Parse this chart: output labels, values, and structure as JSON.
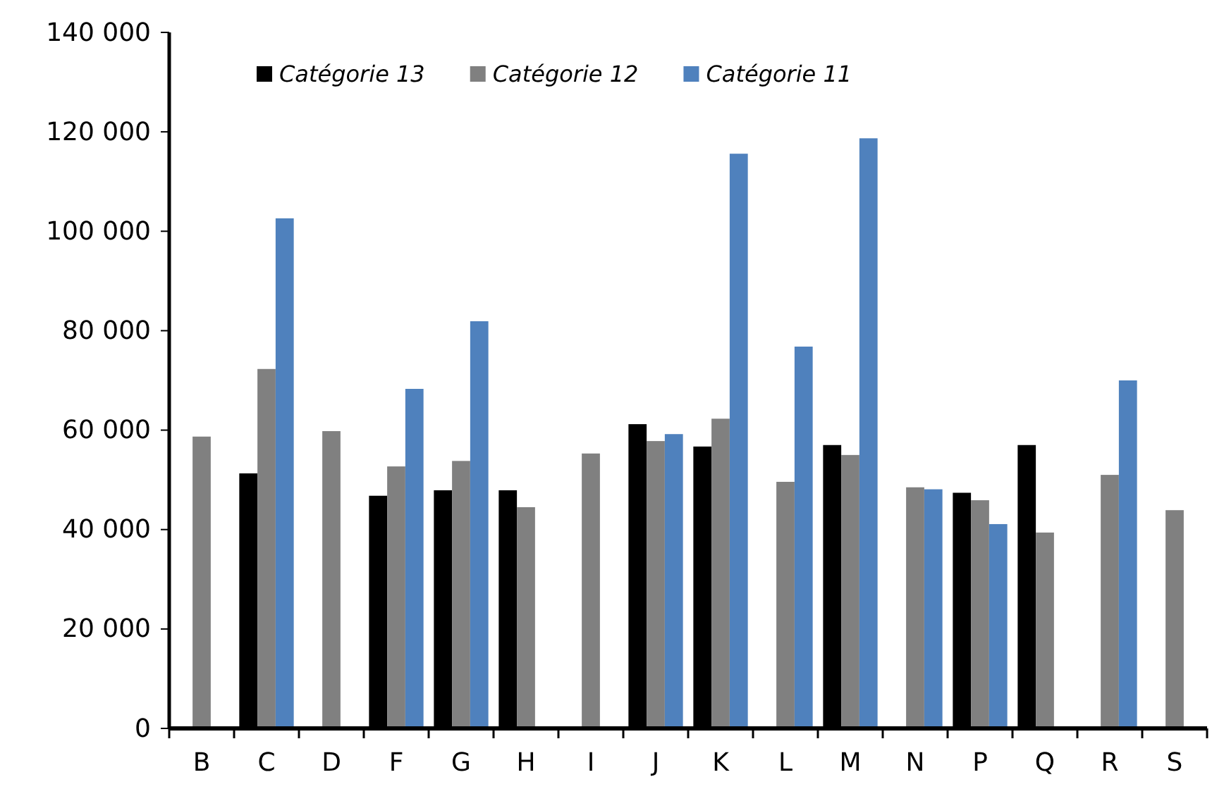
{
  "chart_data": {
    "type": "bar",
    "categories": [
      "B",
      "C",
      "D",
      "F",
      "G",
      "H",
      "I",
      "J",
      "K",
      "L",
      "M",
      "N",
      "P",
      "Q",
      "R",
      "S"
    ],
    "series": [
      {
        "name": "Catégorie 13",
        "color": "#000000",
        "values": [
          null,
          51300,
          null,
          46800,
          47900,
          47900,
          null,
          61200,
          56700,
          null,
          57000,
          null,
          47400,
          57000,
          null,
          null
        ]
      },
      {
        "name": "Catégorie 12",
        "color": "#808080",
        "values": [
          58700,
          72300,
          59800,
          52700,
          53800,
          44500,
          55300,
          57800,
          62300,
          49600,
          55000,
          48500,
          45900,
          39400,
          51000,
          43900
        ]
      },
      {
        "name": "Catégorie 11",
        "color": "#4f81bd",
        "values": [
          null,
          102600,
          null,
          68300,
          81900,
          null,
          null,
          59200,
          115600,
          76800,
          118700,
          48100,
          41100,
          null,
          70000,
          null
        ]
      }
    ],
    "ylim": [
      0,
      140000
    ],
    "yticks": [
      {
        "value": 0,
        "label": "0"
      },
      {
        "value": 20000,
        "label": "20 000"
      },
      {
        "value": 40000,
        "label": "40 000"
      },
      {
        "value": 60000,
        "label": "60 000"
      },
      {
        "value": 80000,
        "label": "80 000"
      },
      {
        "value": 100000,
        "label": "100 000"
      },
      {
        "value": 120000,
        "label": "120 000"
      },
      {
        "value": 140000,
        "label": "140 000"
      }
    ],
    "grid": false,
    "legend": "top left"
  }
}
